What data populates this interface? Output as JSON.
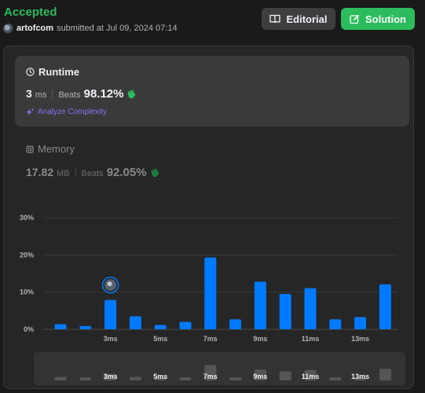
{
  "header": {
    "status": "Accepted",
    "username": "artofcom",
    "submitted_text": "submitted at Jul 09, 2024 07:14"
  },
  "buttons": {
    "editorial": "Editorial",
    "solution": "Solution"
  },
  "runtime": {
    "title": "Runtime",
    "value": "3",
    "unit": "ms",
    "beats_label": "Beats",
    "beats_pct": "98.12%",
    "analyze_label": "Analyze Complexity"
  },
  "memory": {
    "title": "Memory",
    "value": "17.82",
    "unit": "MB",
    "beats_label": "Beats",
    "beats_pct": "92.05%"
  },
  "colors": {
    "accepted": "#2cbb5d",
    "bar": "#007aff",
    "analyze": "#8e6ff2"
  },
  "chart_data": {
    "type": "bar",
    "categories": [
      "1ms",
      "2ms",
      "3ms",
      "4ms",
      "5ms",
      "6ms",
      "7ms",
      "8ms",
      "9ms",
      "10ms",
      "11ms",
      "12ms",
      "13ms",
      "14ms"
    ],
    "x_tick_labels": [
      "",
      "",
      "3ms",
      "",
      "5ms",
      "",
      "7ms",
      "",
      "9ms",
      "",
      "11ms",
      "",
      "13ms",
      ""
    ],
    "values": [
      1.4,
      0.9,
      7.9,
      3.5,
      1.2,
      2.0,
      19.3,
      2.7,
      12.8,
      9.5,
      11.1,
      2.7,
      3.3,
      12.1
    ],
    "y_ticks": [
      "0%",
      "10%",
      "20%",
      "30%"
    ],
    "ylim": [
      0,
      30
    ],
    "highlight_index": 2,
    "grid": true,
    "minimap_values": [
      1.4,
      0.9,
      2.5,
      1.4,
      0.9,
      1.2,
      6.0,
      0.9,
      4.2,
      3.5,
      4.0,
      0.9,
      1.0,
      4.5
    ]
  }
}
